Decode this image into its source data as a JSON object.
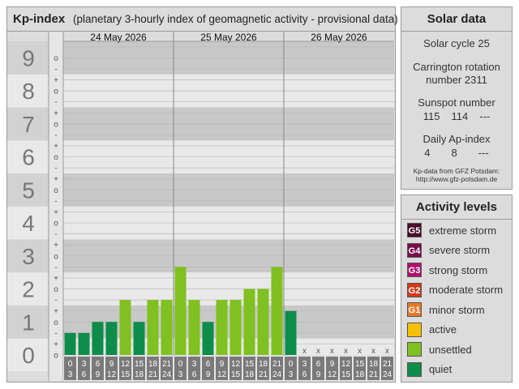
{
  "kp_panel": {
    "title": "Kp-index",
    "subtitle": "(planetary 3-hourly index of geomagnetic activity - provisional data)"
  },
  "solar": {
    "title": "Solar data",
    "cycle_label": "Solar cycle 25",
    "carrington_line1": "Carrington rotation",
    "carrington_line2": "number 2311",
    "sunspot_label": "Sunspot number",
    "sunspot_values": [
      "115",
      "114",
      "---"
    ],
    "ap_label": "Daily Ap-index",
    "ap_values": [
      "4",
      "8",
      "---"
    ],
    "source_line1": "Kp-data from GFZ Potsdam:",
    "source_line2": "http://www.gfz-potsdam.de"
  },
  "activity": {
    "title": "Activity levels",
    "levels": [
      {
        "code": "G5",
        "label": "extreme storm",
        "color": "#4a0a2a"
      },
      {
        "code": "G4",
        "label": "severe storm",
        "color": "#7a0a4a"
      },
      {
        "code": "G3",
        "label": "strong storm",
        "color": "#b0106a"
      },
      {
        "code": "G2",
        "label": "moderate storm",
        "color": "#d43a1a"
      },
      {
        "code": "G1",
        "label": "minor storm",
        "color": "#e8782a"
      },
      {
        "code": "",
        "label": "active",
        "color": "#f5c000"
      },
      {
        "code": "",
        "label": "unsettled",
        "color": "#80c020"
      },
      {
        "code": "",
        "label": "quiet",
        "color": "#0e8c4a"
      }
    ]
  },
  "chart_data": {
    "type": "bar",
    "title": "Kp-index",
    "subtitle": "(planetary 3-hourly index of geomagnetic activity - provisional data)",
    "ylim": [
      0,
      9.5
    ],
    "y_ticks": [
      "0",
      "1",
      "2",
      "3",
      "4",
      "5",
      "6",
      "7",
      "8",
      "9"
    ],
    "minor_labels": [
      "+",
      "o",
      "-"
    ],
    "days": [
      "24 May 2026",
      "25 May 2026",
      "26 May 2026"
    ],
    "interval_starts": [
      "0",
      "3",
      "6",
      "9",
      "12",
      "15",
      "18",
      "21"
    ],
    "interval_ends": [
      "3",
      "6",
      "9",
      "12",
      "15",
      "18",
      "21",
      "24"
    ],
    "missing_marker": "x",
    "values": [
      0.667,
      0.667,
      1.0,
      1.0,
      1.667,
      1.0,
      1.667,
      1.667,
      2.667,
      1.667,
      1.0,
      1.667,
      1.667,
      2.0,
      2.0,
      2.667,
      1.333,
      null,
      null,
      null,
      null,
      null,
      null,
      null
    ],
    "colors": {
      "quiet": "#0e8c4a",
      "unsettled": "#80c020"
    }
  }
}
